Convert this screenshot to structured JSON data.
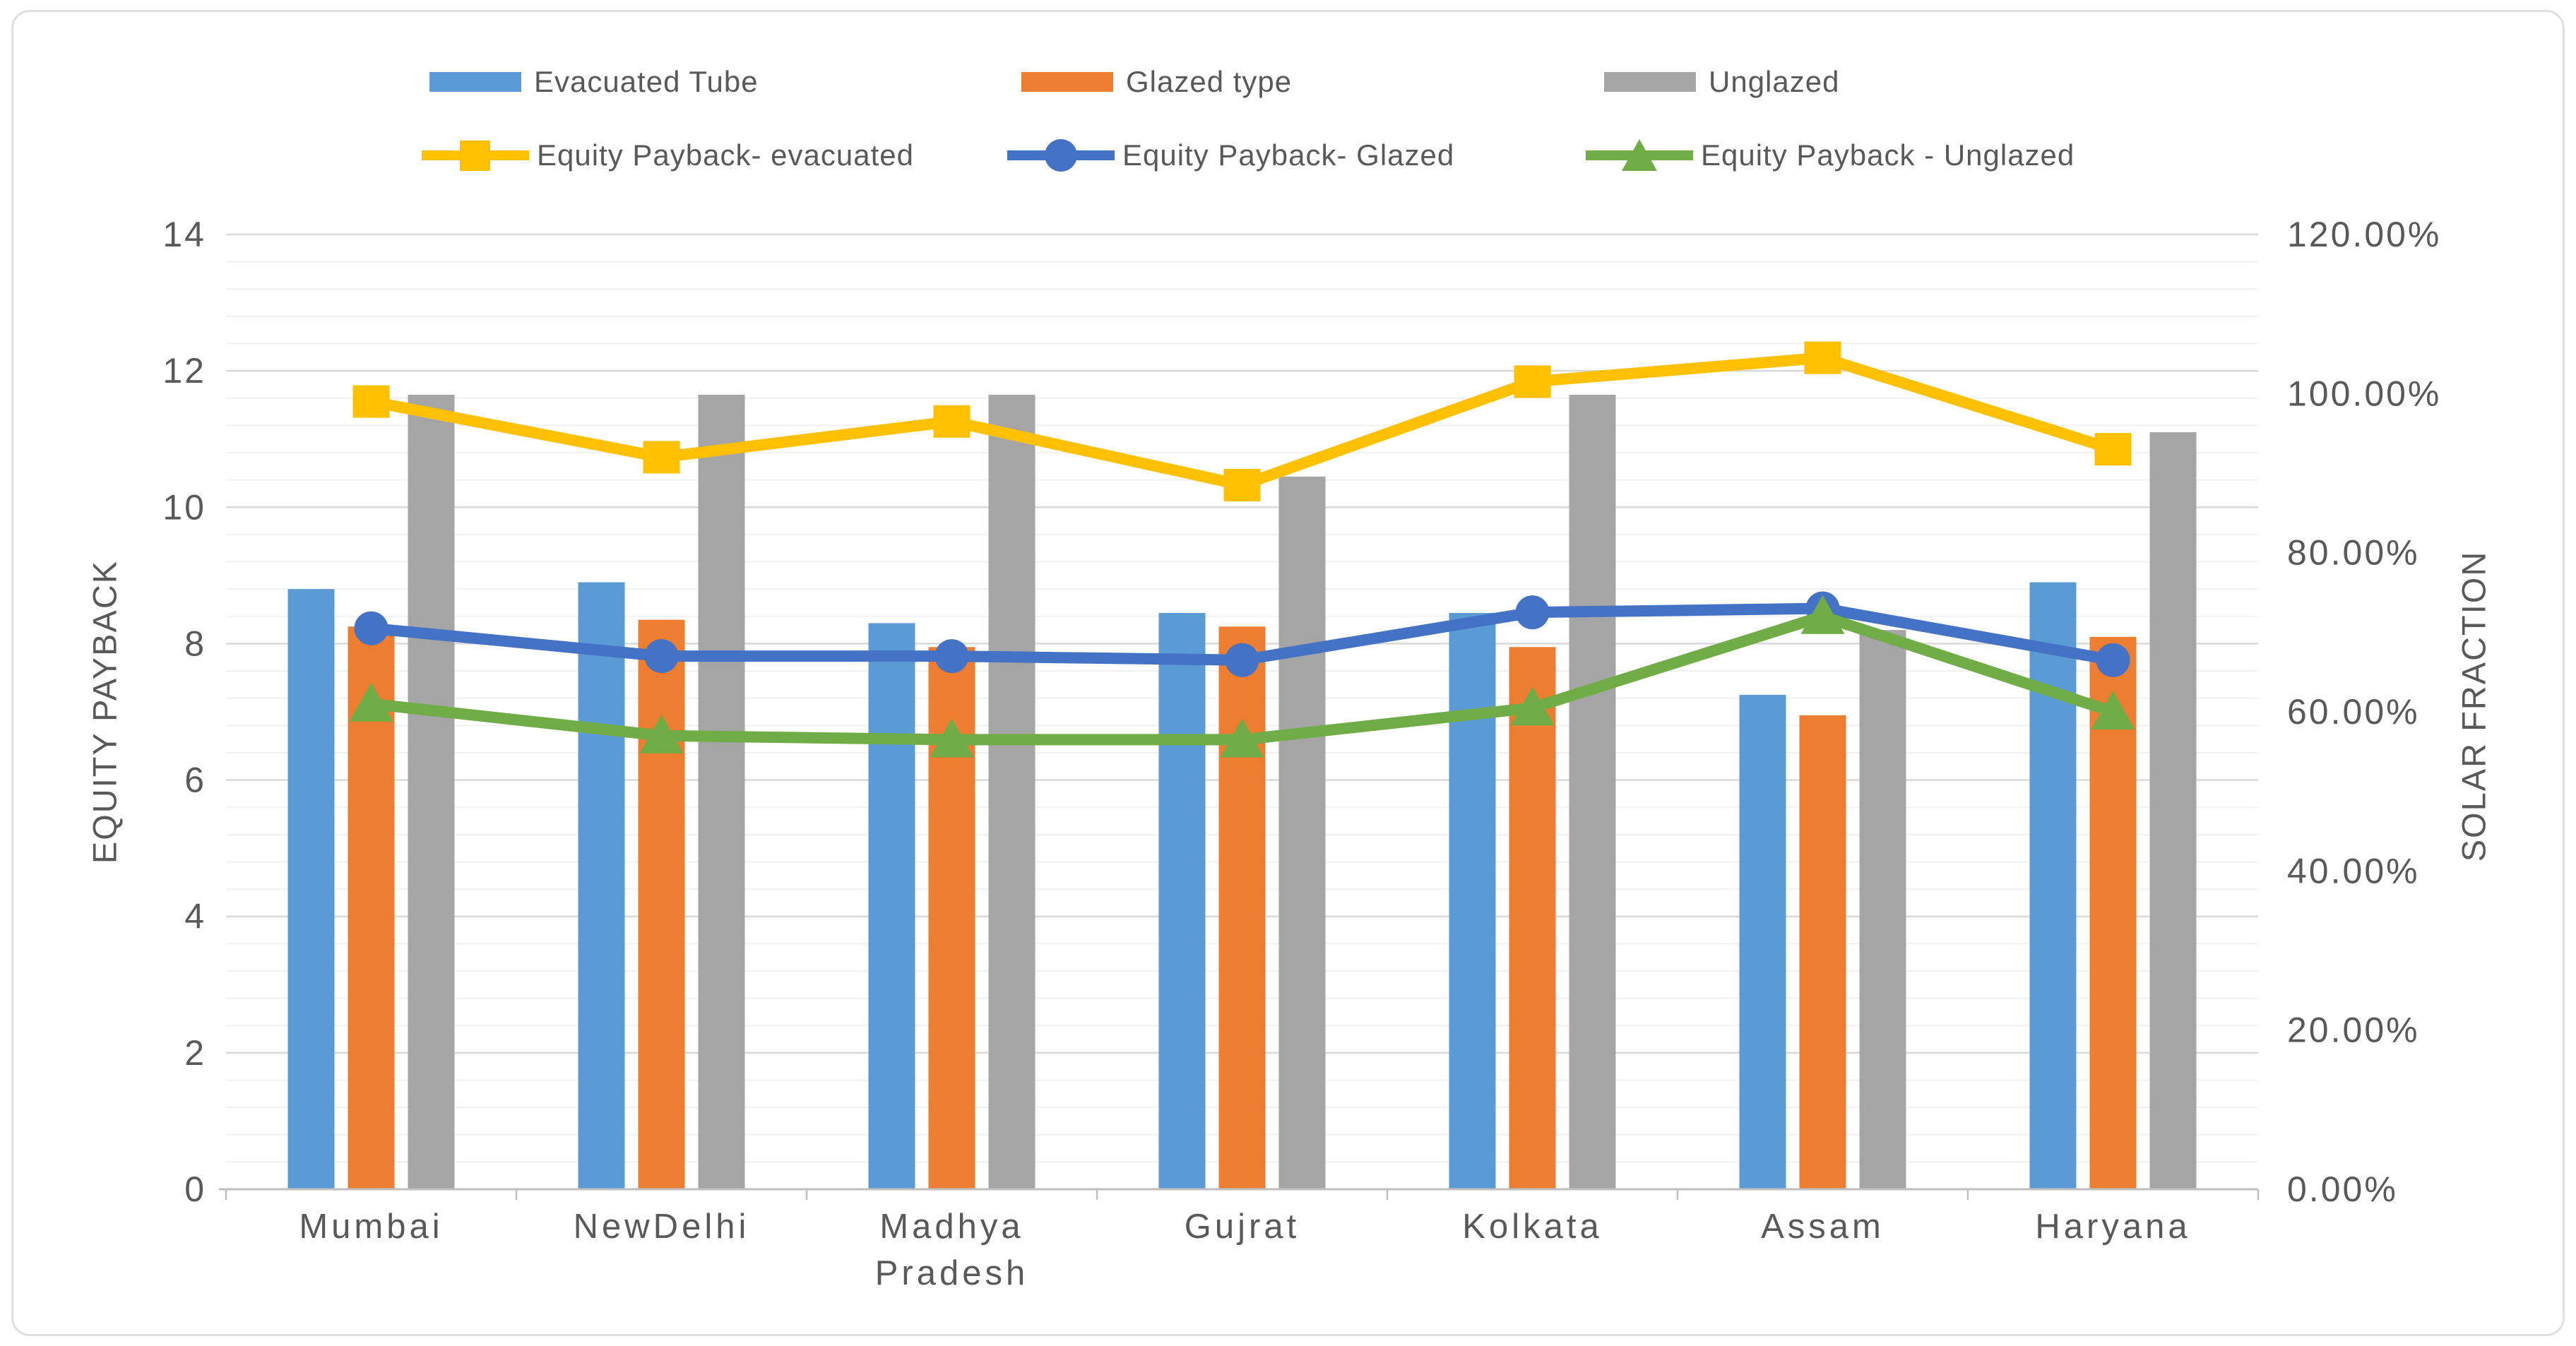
{
  "chart_data": {
    "type": "combo",
    "title": "",
    "categories": [
      "Mumbai",
      "NewDelhi",
      "Madhya Pradesh",
      "Gujrat",
      "Kolkata",
      "Assam",
      "Haryana"
    ],
    "bar_series": [
      {
        "name": "Evacuated Tube",
        "color": "#5B9BD5",
        "axis": "left",
        "values": [
          8.8,
          8.9,
          8.3,
          8.45,
          8.45,
          7.25,
          8.9
        ]
      },
      {
        "name": "Glazed type",
        "color": "#ED7D31",
        "axis": "left",
        "values": [
          8.25,
          8.35,
          7.95,
          8.25,
          7.95,
          6.95,
          8.1
        ]
      },
      {
        "name": "Unglazed",
        "color": "#A5A5A5",
        "axis": "left",
        "values": [
          11.65,
          11.65,
          11.65,
          10.45,
          11.65,
          8.2,
          11.1
        ]
      }
    ],
    "line_series": [
      {
        "name": "Equity Payback- evacuated",
        "color": "#FFC000",
        "marker": "square",
        "axis": "right",
        "values_percent": [
          99,
          92,
          96.5,
          88.5,
          101.5,
          104.5,
          93
        ]
      },
      {
        "name": "Equity Payback- Glazed",
        "color": "#4472C4",
        "marker": "circle",
        "axis": "right",
        "values_percent": [
          70.5,
          67,
          67,
          66.5,
          72.5,
          73,
          66.5
        ]
      },
      {
        "name": "Equity Payback - Unglazed",
        "color": "#70AD47",
        "marker": "triangle",
        "axis": "right",
        "values_percent": [
          61,
          57,
          56.5,
          56.5,
          60.5,
          72,
          60
        ]
      }
    ],
    "left_axis": {
      "title": "EQUITY PAYBACK",
      "min": 0,
      "max": 14,
      "major_unit": 2,
      "minor_unit": 0.4,
      "tick_labels": [
        "0",
        "2",
        "4",
        "6",
        "8",
        "10",
        "12",
        "14"
      ]
    },
    "right_axis": {
      "title": "SOLAR FRACTION",
      "min": 0,
      "max": 120,
      "major_unit": 20,
      "tick_labels": [
        "0.00%",
        "20.00%",
        "40.00%",
        "60.00%",
        "80.00%",
        "100.00%",
        "120.00%"
      ]
    },
    "legend_position": "top",
    "grid": {
      "major": true,
      "minor": true
    },
    "colors": {
      "text": "#595959",
      "major_gridline": "#D9D9D9",
      "minor_gridline": "#F1F1F1",
      "axis_line": "#BFBFBF"
    }
  }
}
